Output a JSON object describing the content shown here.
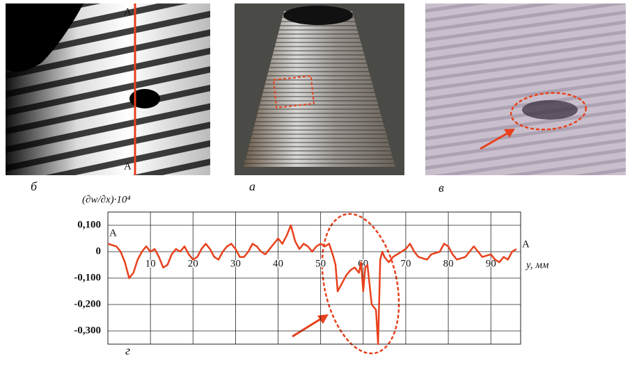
{
  "panels": [
    {
      "label": "б",
      "section_marks": [
        "A",
        "A"
      ]
    },
    {
      "label": "а"
    },
    {
      "label": "в"
    }
  ],
  "chart_data": {
    "type": "line",
    "panel_label": "г",
    "ylabel": "(∂w/∂x)·10⁴",
    "xlabel": "y, мм",
    "start_label": "A",
    "end_label": "A",
    "color": "#e8401c",
    "grid": true,
    "xlim": [
      0,
      97
    ],
    "ylim": [
      -0.35,
      0.15
    ],
    "xticks": [
      10,
      20,
      30,
      40,
      50,
      60,
      70,
      80,
      90
    ],
    "yticks": [
      {
        "value": 0.1,
        "label": "0,100"
      },
      0,
      {
        "value": -0.1,
        "label": "-0,100"
      },
      {
        "value": -0.2,
        "label": "-0,200"
      },
      {
        "value": -0.3,
        "label": "-0,300"
      }
    ],
    "x": [
      0,
      2,
      3,
      4,
      5,
      6,
      7,
      8,
      9,
      10,
      11,
      12,
      13,
      14,
      15,
      16,
      17,
      18,
      19,
      20,
      21,
      22,
      23,
      24,
      25,
      26,
      27,
      28,
      29,
      30,
      31,
      32,
      33,
      34,
      35,
      36,
      37,
      38,
      39,
      40,
      41,
      42,
      43,
      44,
      45,
      46,
      47,
      48,
      49,
      50,
      51,
      52,
      53,
      53.5,
      54,
      55,
      56,
      57,
      58,
      59,
      59.5,
      60,
      60.5,
      61,
      62,
      63,
      63.5,
      64,
      64.5,
      65,
      66,
      67,
      68,
      70,
      71,
      72,
      73,
      75,
      76,
      78,
      79,
      80,
      81,
      82,
      84,
      85,
      86,
      87,
      88,
      90,
      91,
      92,
      93,
      94,
      95,
      96
    ],
    "values": [
      0.03,
      0.02,
      0.0,
      -0.04,
      -0.1,
      -0.08,
      -0.03,
      0.0,
      0.02,
      0.0,
      0.01,
      -0.02,
      -0.06,
      -0.05,
      -0.01,
      0.01,
      0.0,
      0.02,
      -0.01,
      -0.03,
      -0.02,
      0.01,
      0.03,
      0.01,
      -0.02,
      -0.03,
      0.0,
      0.02,
      0.03,
      0.01,
      -0.02,
      -0.02,
      0.0,
      0.03,
      0.02,
      0.0,
      -0.01,
      0.01,
      0.03,
      0.05,
      0.03,
      0.06,
      0.1,
      0.04,
      0.01,
      0.03,
      0.02,
      0.0,
      0.02,
      0.03,
      0.02,
      0.03,
      -0.02,
      -0.05,
      -0.15,
      -0.12,
      -0.09,
      -0.07,
      -0.06,
      -0.08,
      -0.04,
      -0.15,
      -0.06,
      -0.05,
      -0.2,
      -0.22,
      -0.35,
      -0.03,
      0.0,
      -0.02,
      -0.04,
      -0.02,
      -0.01,
      0.01,
      0.03,
      0.0,
      -0.02,
      -0.03,
      -0.01,
      0.0,
      0.03,
      0.02,
      -0.01,
      -0.03,
      -0.02,
      0.0,
      0.02,
      0.0,
      -0.02,
      -0.01,
      -0.03,
      -0.04,
      -0.02,
      -0.03,
      0.0,
      0.01
    ]
  }
}
